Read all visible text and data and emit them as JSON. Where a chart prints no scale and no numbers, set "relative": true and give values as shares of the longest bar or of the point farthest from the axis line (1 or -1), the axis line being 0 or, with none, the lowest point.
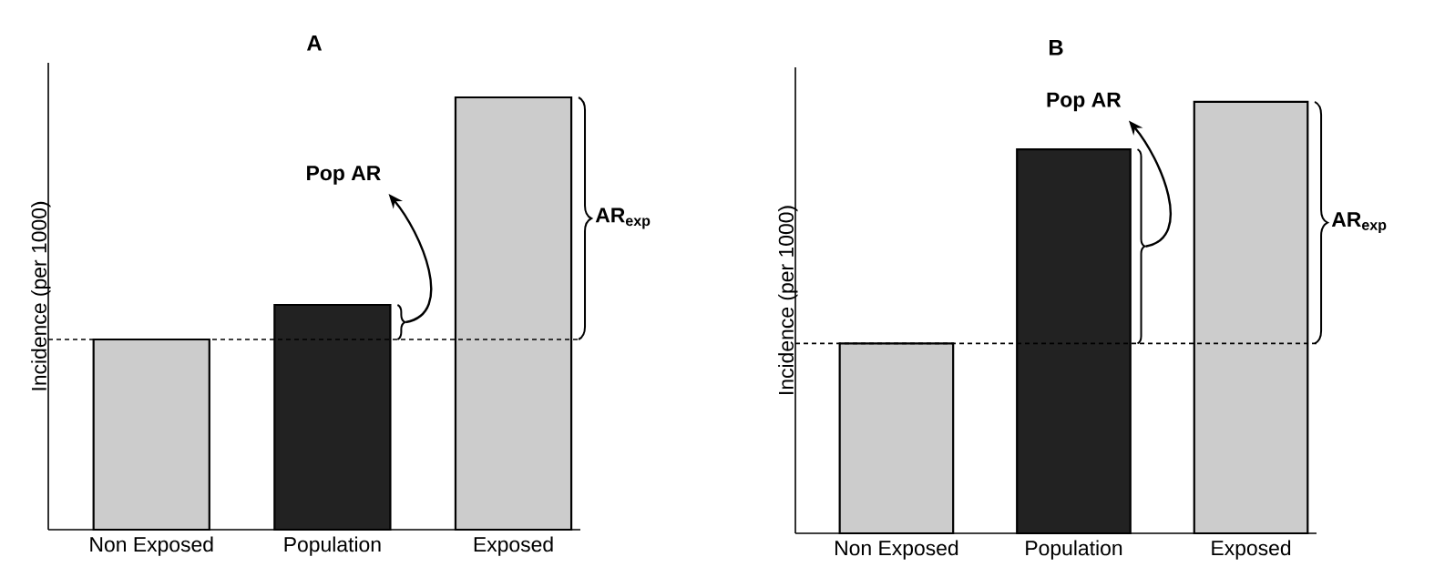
{
  "chart_data": [
    {
      "type": "bar",
      "title": "A",
      "ylabel": "Incidence (per 1000)",
      "categories": [
        "Non Exposed",
        "Population",
        "Exposed"
      ],
      "values": [
        0.44,
        0.52,
        1
      ],
      "colors": [
        "#cccccc",
        "#222222",
        "#cccccc"
      ],
      "relative": true,
      "ref_lines": [
        {
          "axis": "y",
          "value": 0.44,
          "line_style": "dashed"
        }
      ],
      "annotations": [
        "Pop AR",
        "AR$_{exp}$"
      ]
    },
    {
      "type": "bar",
      "title": "B",
      "ylabel": "Incidence (per 1000)",
      "categories": [
        "Non Exposed",
        "Population",
        "Exposed"
      ],
      "values": [
        0.44,
        0.89,
        1
      ],
      "colors": [
        "#cccccc",
        "#222222",
        "#cccccc"
      ],
      "relative": true,
      "ref_lines": [
        {
          "axis": "y",
          "value": 0.44,
          "line_style": "dashed"
        }
      ],
      "annotations": [
        "Pop AR",
        "AR$_{exp}$"
      ]
    }
  ]
}
